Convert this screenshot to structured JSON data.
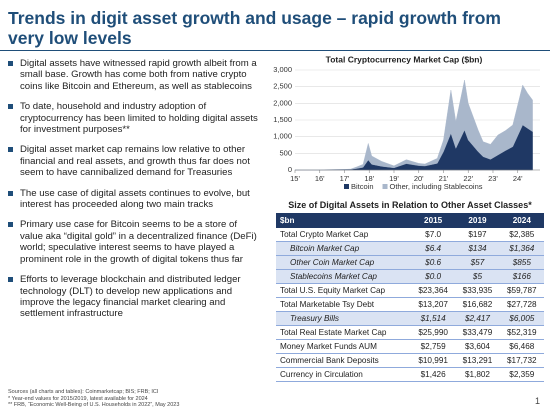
{
  "header": {
    "title": "Trends in digit asset growth and usage – rapid growth from very low levels"
  },
  "bullets": [
    "Digital assets have witnessed rapid growth albeit from a small base. Growth has come both from native crypto coins like Bitcoin and Ethereum, as well as stablecoins",
    "To date, household and industry adoption of cryptocurrency has been limited to holding digital assets for investment purposes**",
    "Digital asset market cap remains low relative to other financial and real assets, and growth thus far does not seem to have cannibalized demand for Treasuries",
    "The use case of digital assets continues to evolve, but interest has proceeded along two main tracks",
    "Primary use case for Bitcoin seems to be a store of value aka “digital gold” in a decentralized finance (DeFi) world; speculative interest seems to have played a prominent role in the growth of digital tokens thus far",
    "Efforts to leverage blockchain and distributed ledger technology (DLT) to develop new applications and improve the legacy financial market clearing and settlement infrastructure"
  ],
  "chart_data": {
    "type": "stacked-area",
    "title": "Total Cryptocurrency Market Cap ($bn)",
    "x": [
      2015.0,
      2016.0,
      2016.5,
      2017.0,
      2017.25,
      2017.5,
      2017.75,
      2017.96,
      2018.1,
      2018.5,
      2019.0,
      2019.5,
      2020.0,
      2020.25,
      2020.75,
      2021.0,
      2021.3,
      2021.5,
      2021.85,
      2022.0,
      2022.4,
      2022.6,
      2022.9,
      2023.2,
      2023.5,
      2023.8,
      2024.2,
      2024.4,
      2024.6
    ],
    "series": [
      {
        "name": "Bitcoin",
        "color": "#1f3864",
        "values": [
          5,
          6,
          10,
          16,
          20,
          45,
          80,
          300,
          170,
          110,
          65,
          190,
          130,
          120,
          200,
          550,
          1100,
          650,
          1200,
          900,
          550,
          400,
          320,
          450,
          580,
          700,
          1350,
          1250,
          1150
        ]
      },
      {
        "name": "Other, including Stablecoins",
        "color": "#a9b7cb",
        "values": [
          1,
          1,
          2,
          3,
          8,
          50,
          90,
          500,
          250,
          150,
          60,
          120,
          70,
          60,
          150,
          350,
          1300,
          800,
          1500,
          1100,
          650,
          450,
          450,
          600,
          600,
          650,
          1200,
          1050,
          950
        ]
      }
    ],
    "xlim": [
      2015,
      2024.9
    ],
    "xticks": [
      {
        "value": 2015,
        "label": "15'"
      },
      {
        "value": 2016,
        "label": "16'"
      },
      {
        "value": 2017,
        "label": "17'"
      },
      {
        "value": 2018,
        "label": "18'"
      },
      {
        "value": 2019,
        "label": "19'"
      },
      {
        "value": 2020,
        "label": "20'"
      },
      {
        "value": 2021,
        "label": "21'"
      },
      {
        "value": 2022,
        "label": "22'"
      },
      {
        "value": 2023,
        "label": "23'"
      },
      {
        "value": 2024,
        "label": "24'"
      }
    ],
    "ylim": [
      0,
      3000
    ],
    "yticks": [
      0,
      500,
      {
        "value": 1000,
        "label": "1,000"
      },
      {
        "value": 1500,
        "label": "1,500"
      },
      {
        "value": 2000,
        "label": "2,000"
      },
      {
        "value": 2500,
        "label": "2,500"
      },
      {
        "value": 3000,
        "label": "3,000"
      }
    ],
    "legend": "bottom"
  },
  "table": {
    "title": "Size of Digital Assets in Relation to Other Asset Classes*",
    "header": [
      "$bn",
      "2015",
      "2019",
      "2024"
    ],
    "rows": [
      {
        "cells": [
          "Total Crypto Market Cap",
          "$7.0",
          "$197",
          "$2,385"
        ],
        "style": "main"
      },
      {
        "cells": [
          "Bitcoin Market Cap",
          "$6.4",
          "$134",
          "$1,364"
        ],
        "style": "sub"
      },
      {
        "cells": [
          "Other Coin Market Cap",
          "$0.6",
          "$57",
          "$855"
        ],
        "style": "sub"
      },
      {
        "cells": [
          "Stablecoins Market Cap",
          "$0.0",
          "$5",
          "$166"
        ],
        "style": "sub"
      },
      {
        "cells": [
          "Total U.S. Equity Market Cap",
          "$23,364",
          "$33,935",
          "$59,787"
        ],
        "style": "main"
      },
      {
        "cells": [
          "Total Marketable Tsy Debt",
          "$13,207",
          "$16,682",
          "$27,728"
        ],
        "style": "main"
      },
      {
        "cells": [
          "Treasury Bills",
          "$1,514",
          "$2,417",
          "$6,005"
        ],
        "style": "sub"
      },
      {
        "cells": [
          "Total Real Estate Market Cap",
          "$25,990",
          "$33,479",
          "$52,319"
        ],
        "style": "main"
      },
      {
        "cells": [
          "Money Market Funds AUM",
          "$2,759",
          "$3,604",
          "$6,468"
        ],
        "style": "main"
      },
      {
        "cells": [
          "Commercial Bank Deposits",
          "$10,991",
          "$13,291",
          "$17,732"
        ],
        "style": "main"
      },
      {
        "cells": [
          "Currency in Circulation",
          "$1,426",
          "$1,802",
          "$2,359"
        ],
        "style": "main"
      }
    ]
  },
  "footnotes": [
    "Sources (all charts and tables): Coinmarketcap; BIS; FRB; ICI",
    "* Year-end values for 2015/2019, latest available for 2024",
    "** FRB, “Economic Well-Being of U.S. Households in 2022”, May 2023"
  ],
  "page_number": "1"
}
